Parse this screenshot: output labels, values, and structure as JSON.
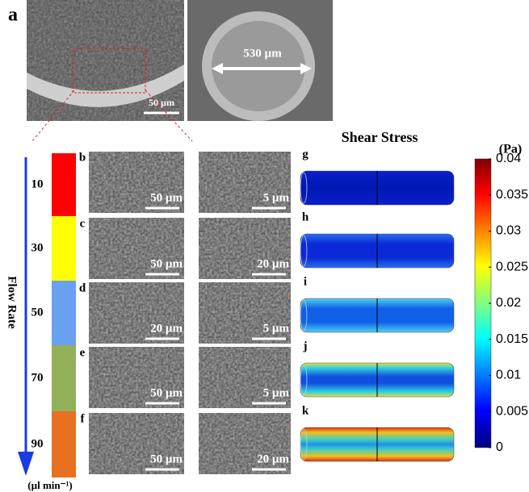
{
  "panel_a": {
    "label": "a",
    "scale_bar": "50 µm",
    "diameter": "530 µm"
  },
  "flow_rate": {
    "axis_title": "Flow Rate",
    "unit": "(µl min⁻¹)",
    "levels": [
      {
        "rate": "10",
        "panel": "b",
        "scale_left": "50 µm",
        "scale_right": "5 µm"
      },
      {
        "rate": "30",
        "panel": "c",
        "scale_left": "50 µm",
        "scale_right": "20 µm"
      },
      {
        "rate": "50",
        "panel": "d",
        "scale_left": "20 µm",
        "scale_right": "5 µm"
      },
      {
        "rate": "70",
        "panel": "e",
        "scale_left": "50 µm",
        "scale_right": "5 µm"
      },
      {
        "rate": "90",
        "panel": "f",
        "scale_left": "50 µm",
        "scale_right": "20 µm"
      }
    ]
  },
  "shear_stress": {
    "title": "Shear Stress",
    "unit": "(Pa)",
    "panels": [
      "g",
      "h",
      "i",
      "j",
      "k"
    ],
    "colorbar_ticks": [
      "0.04",
      "0.035",
      "0.03",
      "0.025",
      "0.02",
      "0.015",
      "0.01",
      "0.005",
      "0"
    ]
  }
}
